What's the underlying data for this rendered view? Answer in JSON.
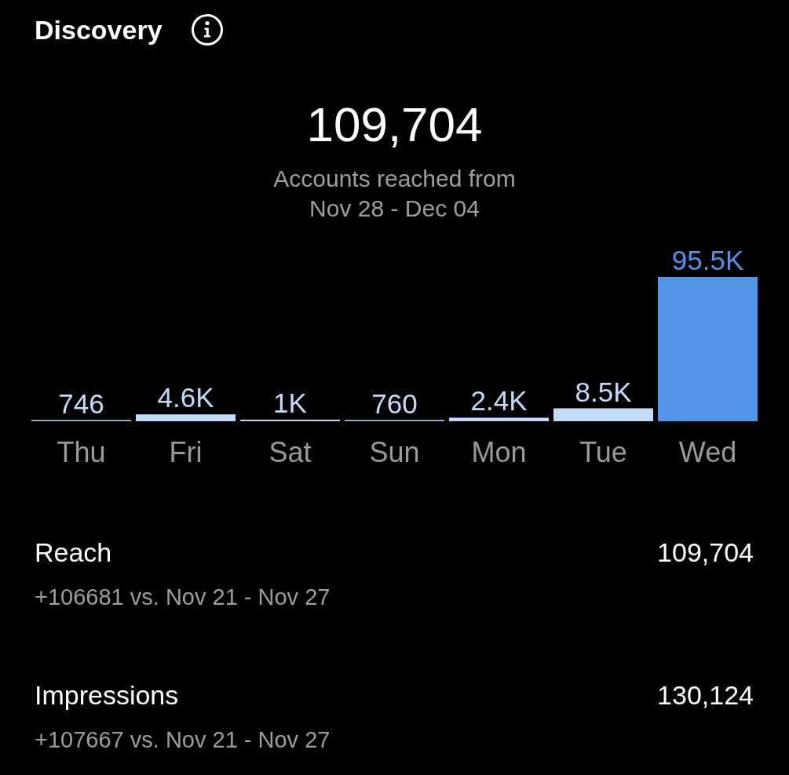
{
  "chart_data": {
    "type": "bar",
    "title": "Discovery",
    "subtitle": "Accounts reached from\nNov 28 - Dec 04",
    "categories": [
      "Thu",
      "Fri",
      "Sat",
      "Sun",
      "Mon",
      "Tue",
      "Wed"
    ],
    "values": [
      746,
      4600,
      1000,
      760,
      2400,
      8500,
      95500
    ],
    "value_labels": [
      "746",
      "4.6K",
      "1K",
      "760",
      "2.4K",
      "8.5K",
      "95.5K"
    ],
    "colors": [
      "#c2dbf8",
      "#c2dbf8",
      "#c2dbf8",
      "#c2dbf8",
      "#c2dbf8",
      "#c2dbf8",
      "#5193e6"
    ],
    "annotations": [
      "109,704",
      "Reach",
      "109,704",
      "+106681 vs. Nov 21 - Nov 27",
      "Impressions",
      "130,124",
      "+107667 vs. Nov 21 - Nov 27"
    ]
  }
}
